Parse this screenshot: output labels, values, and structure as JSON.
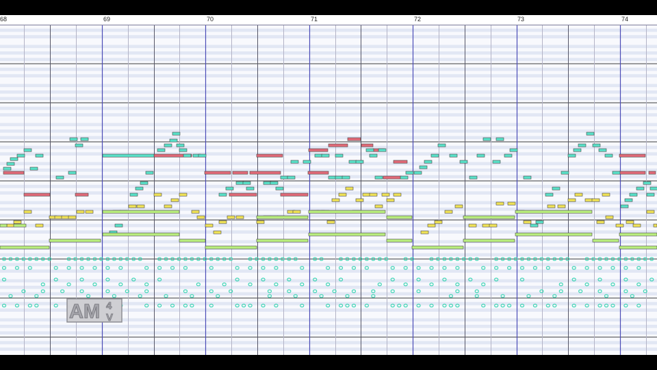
{
  "app": {
    "name": "piano roll editor"
  },
  "ruler": {
    "measures": [
      "68",
      "69",
      "70",
      "71",
      "72",
      "73",
      "74"
    ]
  },
  "watermark": {
    "text": "AM4V"
  },
  "colors": {
    "background": "#f4f6fb",
    "row_white": "#f8f9fd",
    "row_dark": "#e2e7f4",
    "beat_line": "#b3b3c6",
    "measure_line": "#4b4bb6",
    "octave_line": "#3d3d3d",
    "note_red": "#e06a78",
    "note_cyan": "#59e0c8",
    "note_yellow": "#efe257",
    "note_green": "#b9ee7e",
    "note_outline": "#444444",
    "drum": "#41d6b6"
  }
}
